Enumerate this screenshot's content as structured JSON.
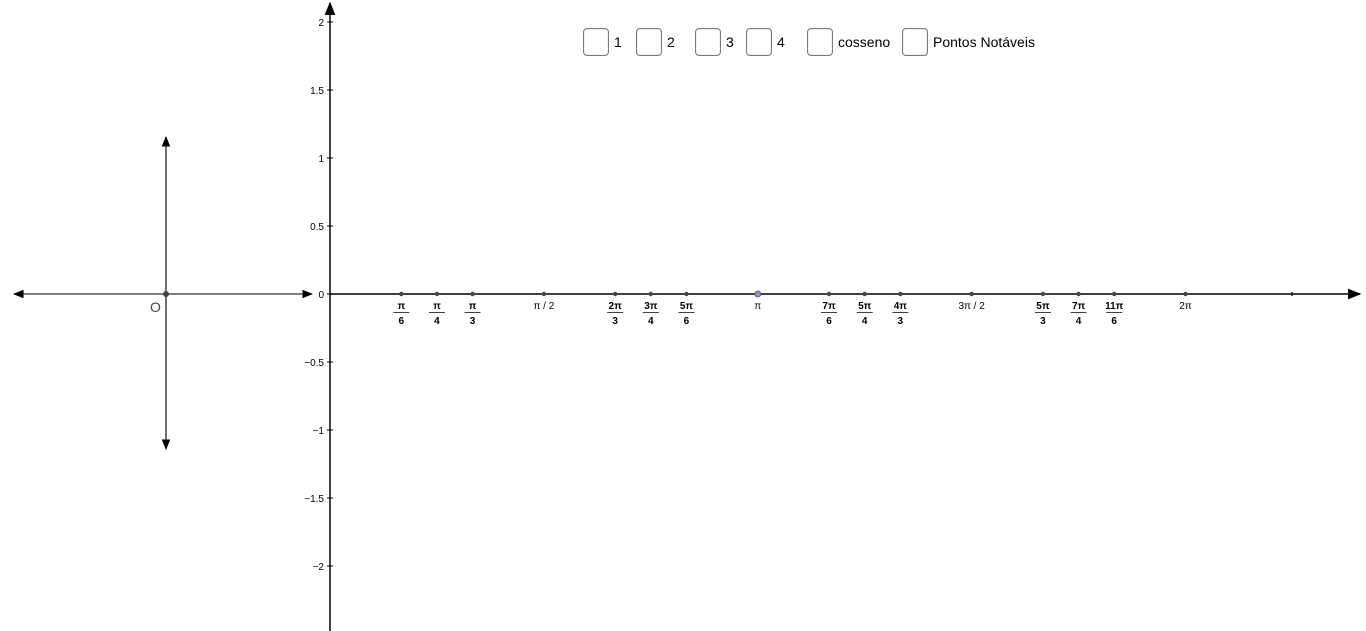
{
  "checkboxes": [
    {
      "label": "1",
      "checked": false
    },
    {
      "label": "2",
      "checked": false
    },
    {
      "label": "3",
      "checked": false
    },
    {
      "label": "4",
      "checked": false
    },
    {
      "label": "cosseno",
      "checked": false
    },
    {
      "label": "Pontos Notáveis",
      "checked": false
    }
  ],
  "circle_axes": {
    "origin_label": "O"
  },
  "graph": {
    "y_ticks": [
      {
        "value": 2,
        "label": "2"
      },
      {
        "value": 1.5,
        "label": "1.5"
      },
      {
        "value": 1,
        "label": "1"
      },
      {
        "value": 0.5,
        "label": "0.5"
      },
      {
        "value": 0,
        "label": "0"
      },
      {
        "value": -0.5,
        "label": "−0.5"
      },
      {
        "value": -1,
        "label": "−1"
      },
      {
        "value": -1.5,
        "label": "−1.5"
      },
      {
        "value": -2,
        "label": "−2"
      }
    ],
    "x_points": [
      {
        "multiple": 0.16667,
        "num": "π",
        "den": "6"
      },
      {
        "multiple": 0.25,
        "num": "π",
        "den": "4"
      },
      {
        "multiple": 0.33333,
        "num": "π",
        "den": "3"
      },
      {
        "multiple": 0.5,
        "text": "π / 2"
      },
      {
        "multiple": 0.66667,
        "num": "2π",
        "den": "3"
      },
      {
        "multiple": 0.75,
        "num": "3π",
        "den": "4"
      },
      {
        "multiple": 0.83333,
        "num": "5π",
        "den": "6"
      },
      {
        "multiple": 1,
        "text": "π",
        "highlight": true
      },
      {
        "multiple": 1.16667,
        "num": "7π",
        "den": "6"
      },
      {
        "multiple": 1.25,
        "num": "5π",
        "den": "4"
      },
      {
        "multiple": 1.33333,
        "num": "4π",
        "den": "3"
      },
      {
        "multiple": 1.5,
        "text": "3π / 2"
      },
      {
        "multiple": 1.66667,
        "num": "5π",
        "den": "3"
      },
      {
        "multiple": 1.75,
        "num": "7π",
        "den": "4"
      },
      {
        "multiple": 1.83333,
        "num": "11π",
        "den": "6"
      },
      {
        "multiple": 2,
        "text": "2π"
      }
    ]
  }
}
